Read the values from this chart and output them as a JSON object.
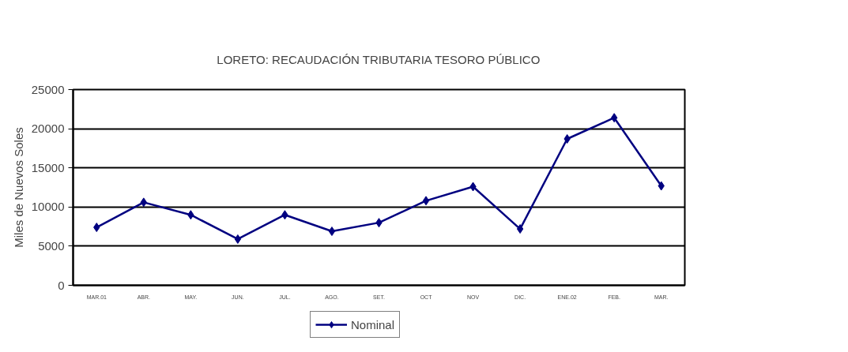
{
  "chart_data": {
    "type": "line",
    "title": "LORETO: RECAUDACIÓN TRIBUTARIA TESORO PÚBLICO",
    "ylabel": "Miles de Nuevos Soles",
    "categories": [
      "MAR.01",
      "ABR.",
      "MAY.",
      "JUN.",
      "JUL.",
      "AGO.",
      "SET.",
      "OCT",
      "NOV",
      "DIC.",
      "ENE.02",
      "FEB.",
      "MAR."
    ],
    "series": [
      {
        "name": "Nominal",
        "color": "#000080",
        "values": [
          7400,
          10600,
          9000,
          5900,
          9000,
          6900,
          8000,
          10800,
          12600,
          7200,
          18700,
          21400,
          12700
        ]
      }
    ],
    "ylim": [
      0,
      25000
    ],
    "yticks": [
      0,
      5000,
      10000,
      15000,
      20000,
      25000
    ],
    "grid": "y",
    "legend": "bottom",
    "marker": "diamond",
    "line_style": "solid"
  }
}
